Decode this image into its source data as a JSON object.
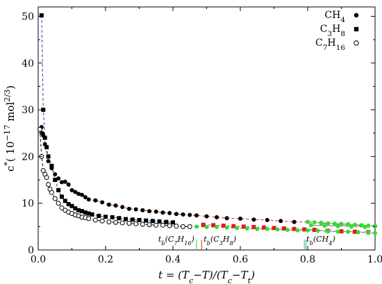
{
  "chart_data": {
    "type": "scatter",
    "title": "",
    "xlabel": "t = (Tₙ−T)/(Tₙ−Tₜ)",
    "xlabel_parts": [
      "t = (T",
      "c",
      "−T)/(T",
      "c",
      "−T",
      "t",
      ")"
    ],
    "ylabel_parts": [
      "c",
      "*",
      "( 10",
      "−17",
      " mol",
      "2/3",
      ")"
    ],
    "xlim": [
      0,
      1
    ],
    "ylim": [
      0,
      52
    ],
    "xticks": [
      0.0,
      0.2,
      0.4,
      0.6,
      0.8,
      1.0
    ],
    "xtick_labels": [
      "0.0",
      "0.2",
      "0.4",
      "0.6",
      "0.8",
      "1.0"
    ],
    "yticks": [
      0,
      10,
      20,
      30,
      40,
      50
    ],
    "ytick_labels": [
      "0",
      "10",
      "20",
      "30",
      "40",
      "50"
    ],
    "grid": false,
    "legend_position": "top-right",
    "series": [
      {
        "name": "CH4",
        "label_parts": [
          "CH",
          "4",
          ""
        ],
        "marker": "filled-circle",
        "color": "#000000",
        "fit_color": "#e31a1c",
        "x": [
          0.01,
          0.012,
          0.015,
          0.02,
          0.03,
          0.04,
          0.05,
          0.06,
          0.07,
          0.08,
          0.09,
          0.1,
          0.11,
          0.12,
          0.13,
          0.14,
          0.15,
          0.17,
          0.19,
          0.21,
          0.23,
          0.25,
          0.27,
          0.29,
          0.31,
          0.33,
          0.35,
          0.37,
          0.39,
          0.41,
          0.43,
          0.45,
          0.47,
          0.5,
          0.53,
          0.56,
          0.6,
          0.64,
          0.68,
          0.72,
          0.76,
          0.8,
          0.84,
          0.88,
          0.92,
          0.96,
          1.0
        ],
        "y": [
          26.3,
          25.0,
          24.5,
          22.6,
          19.0,
          17.5,
          16.2,
          15.3,
          14.5,
          14.6,
          14.0,
          12.8,
          12.4,
          12.0,
          11.8,
          11.3,
          10.8,
          10.6,
          10.2,
          9.7,
          9.5,
          9.2,
          8.8,
          8.7,
          8.5,
          8.3,
          8.2,
          8.0,
          7.9,
          7.7,
          7.6,
          7.5,
          7.4,
          7.2,
          7.0,
          6.8,
          6.7,
          6.5,
          6.4,
          6.2,
          6.0,
          6.0,
          5.8,
          5.6,
          5.5,
          5.3,
          5.1
        ]
      },
      {
        "name": "C3H8",
        "label_parts": [
          "C",
          "3",
          "H",
          "8"
        ],
        "marker": "filled-square",
        "color": "#000000",
        "fit_color": "#1f3fbf",
        "x": [
          0.01,
          0.015,
          0.02,
          0.025,
          0.03,
          0.04,
          0.05,
          0.06,
          0.07,
          0.08,
          0.09,
          0.1,
          0.11,
          0.12,
          0.13,
          0.14,
          0.15,
          0.16,
          0.18,
          0.2,
          0.22,
          0.24,
          0.26,
          0.28,
          0.3,
          0.32,
          0.34,
          0.36,
          0.38,
          0.4
        ],
        "y": [
          50.2,
          30.0,
          24.0,
          22.0,
          20.0,
          18.0,
          15.0,
          12.8,
          11.4,
          10.5,
          9.8,
          9.4,
          8.9,
          8.5,
          8.3,
          8.0,
          7.8,
          7.6,
          7.3,
          7.1,
          7.0,
          6.8,
          6.6,
          6.5,
          6.4,
          6.3,
          6.2,
          6.1,
          6.0,
          5.9
        ]
      },
      {
        "name": "C7H16",
        "label_parts": [
          "C",
          "7",
          "H",
          "16"
        ],
        "marker": "open-circle",
        "color": "#000000",
        "fit_color": "#000000",
        "x": [
          0.005,
          0.01,
          0.015,
          0.02,
          0.025,
          0.03,
          0.035,
          0.04,
          0.05,
          0.06,
          0.07,
          0.08,
          0.09,
          0.1,
          0.11,
          0.12,
          0.13,
          0.14,
          0.15,
          0.17,
          0.19,
          0.21,
          0.23,
          0.25,
          0.27,
          0.29,
          0.31,
          0.33,
          0.35,
          0.37,
          0.39,
          0.41,
          0.43,
          0.45
        ],
        "y": [
          25.8,
          20.0,
          17.0,
          16.2,
          15.5,
          14.0,
          13.0,
          12.3,
          11.0,
          10.0,
          9.0,
          8.5,
          8.1,
          7.8,
          7.5,
          7.3,
          7.0,
          6.9,
          6.7,
          6.4,
          6.2,
          6.0,
          5.9,
          5.8,
          5.7,
          5.6,
          5.5,
          5.4,
          5.3,
          5.3,
          5.2,
          5.1,
          5.0,
          5.0
        ]
      }
    ],
    "extra_points": [
      {
        "name": "CH4 beyond t_b",
        "color": "#33dd33",
        "marker": "filled-circle",
        "x": [
          0.8,
          0.82,
          0.84,
          0.86,
          0.88,
          0.9,
          0.92,
          0.94,
          0.96,
          0.98,
          1.0,
          0.81,
          0.85,
          0.89,
          0.93,
          0.97
        ],
        "y": [
          6.0,
          5.9,
          5.8,
          5.7,
          5.6,
          5.6,
          5.5,
          5.4,
          5.3,
          5.2,
          5.1,
          5.3,
          5.2,
          5.1,
          5.0,
          4.9
        ]
      },
      {
        "name": "C3H8 beyond t_b",
        "color": "#e31a1c",
        "marker": "filled-square",
        "x": [
          0.49,
          0.52,
          0.55,
          0.58,
          0.61,
          0.64,
          0.67,
          0.7,
          0.73,
          0.76,
          0.79,
          0.82,
          0.86,
          0.9,
          0.94,
          0.98
        ],
        "y": [
          5.4,
          5.3,
          5.2,
          5.1,
          5.0,
          4.9,
          4.8,
          4.7,
          4.6,
          4.5,
          4.4,
          4.3,
          4.1,
          4.0,
          3.9,
          3.8
        ]
      },
      {
        "name": "C7H16 beyond t_b",
        "color": "#33dd33",
        "marker": "filled-circle",
        "x": [
          0.47,
          0.5,
          0.53,
          0.56,
          0.59,
          0.62,
          0.65,
          0.68,
          0.71,
          0.74,
          0.77,
          0.8,
          0.83,
          0.86,
          0.89,
          0.92,
          0.95,
          0.98,
          1.0
        ],
        "y": [
          5.0,
          4.9,
          4.9,
          4.8,
          4.7,
          4.6,
          4.5,
          4.5,
          4.4,
          4.3,
          4.2,
          4.2,
          4.1,
          4.0,
          3.9,
          3.9,
          3.8,
          3.7,
          3.6
        ]
      }
    ],
    "markers_vertical": [
      {
        "x": 0.47,
        "color": "#33cc33",
        "label_parts": [
          "t",
          "b",
          "(C",
          "7",
          "H",
          "16",
          ")"
        ],
        "label_side": "left"
      },
      {
        "x": 0.485,
        "color": "#e31a1c",
        "label_parts": [
          "t",
          "b",
          "(C",
          "3",
          "H",
          "8",
          ")"
        ],
        "label_side": "right"
      },
      {
        "x": 0.79,
        "color": "#33cc33",
        "label_parts": [
          "t",
          "b",
          "(CH",
          "4",
          ")"
        ],
        "label_side": "right"
      },
      {
        "x": 0.795,
        "color": "#1f9fbf",
        "label_parts": [],
        "label_side": "none"
      }
    ]
  }
}
